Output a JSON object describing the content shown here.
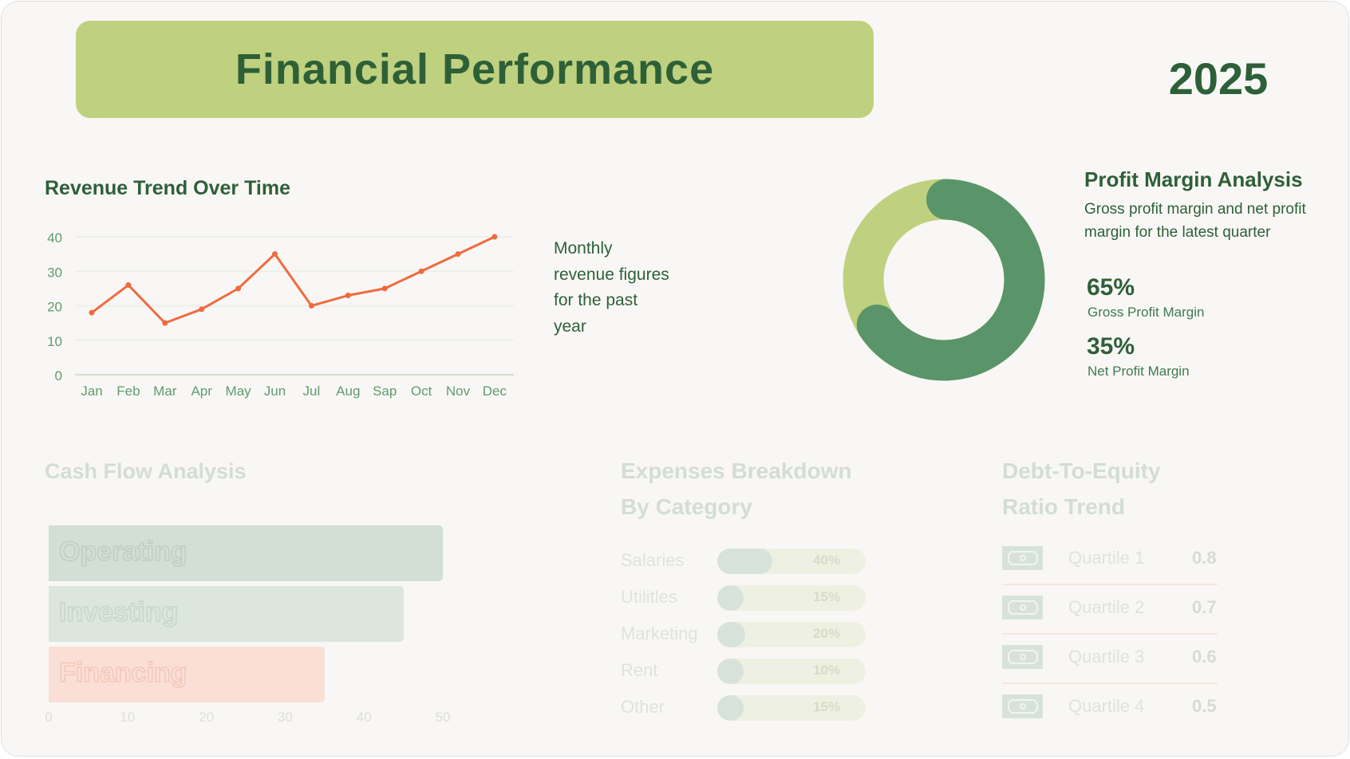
{
  "header": {
    "title": "Financial Performance",
    "year": "2025"
  },
  "revenue": {
    "title": "Revenue Trend Over Time",
    "description": "Monthly revenue figures for the past year"
  },
  "profit": {
    "title": "Profit Margin Analysis",
    "description": "Gross profit margin and net profit margin for the latest quarter",
    "gross_value": "65%",
    "gross_label": "Gross Profit Margin",
    "net_value": "35%",
    "net_label": "Net Profit Margin"
  },
  "cash_flow": {
    "title": "Cash Flow Analysis"
  },
  "expenses": {
    "title_line1": "Expenses Breakdown",
    "title_line2": "By Category",
    "items": [
      {
        "label": "Salaries",
        "pct": "40%",
        "value": 40
      },
      {
        "label": "Utilitles",
        "pct": "15%",
        "value": 15
      },
      {
        "label": "Marketing",
        "pct": "20%",
        "value": 20
      },
      {
        "label": "Rent",
        "pct": "10%",
        "value": 10
      },
      {
        "label": "Other",
        "pct": "15%",
        "value": 15
      }
    ]
  },
  "debt": {
    "title_line1": "Debt-To-Equity",
    "title_line2": "Ratio Trend",
    "icon": "money-bill-icon",
    "items": [
      {
        "label": "Quartile 1",
        "value": "0.8"
      },
      {
        "label": "Quartile 2",
        "value": "0.7"
      },
      {
        "label": "Quartile 3",
        "value": "0.6"
      },
      {
        "label": "Quartile 4",
        "value": "0.5"
      }
    ]
  },
  "colors": {
    "dark_green": "#2e6038",
    "mid_green": "#5a9469",
    "light_green": "#bfd17f",
    "orange": "#ef6b3f"
  },
  "chart_data": [
    {
      "type": "line",
      "title": "Revenue Trend Over Time",
      "categories": [
        "Jan",
        "Feb",
        "Mar",
        "Apr",
        "May",
        "Jun",
        "Jul",
        "Aug",
        "Sap",
        "Oct",
        "Nov",
        "Dec"
      ],
      "values": [
        18,
        26,
        15,
        19,
        25,
        35,
        20,
        23,
        25,
        30,
        35,
        40
      ],
      "yticks": [
        "0",
        "10",
        "20",
        "30",
        "40"
      ],
      "ylim": [
        0,
        40
      ],
      "grid": true
    },
    {
      "type": "pie",
      "title": "Profit Margin Analysis",
      "labels": [
        "Gross Profit Margin",
        "Net Profit Margin"
      ],
      "values": [
        65,
        35
      ]
    },
    {
      "type": "bar",
      "title": "Cash Flow Analysis",
      "orientation": "horizontal",
      "categories": [
        "Operating",
        "Investing",
        "Financing"
      ],
      "values": [
        50,
        45,
        35
      ],
      "xticks": [
        "0",
        "10",
        "20",
        "30",
        "40",
        "50"
      ],
      "xlim": [
        0,
        50
      ]
    }
  ]
}
